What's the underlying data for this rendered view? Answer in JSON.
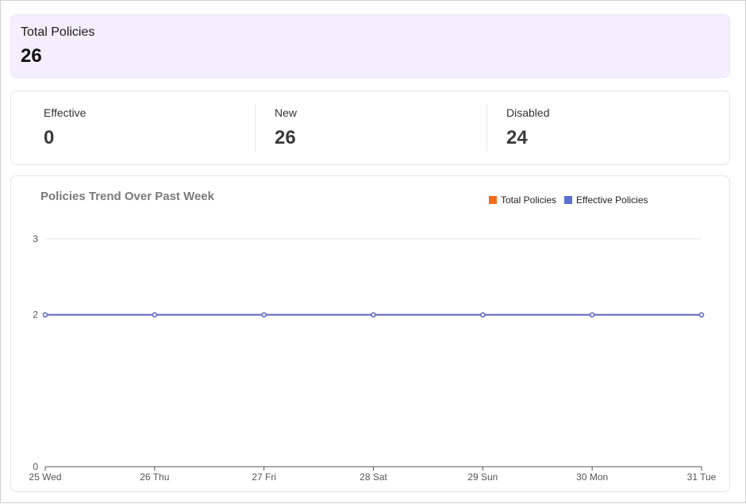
{
  "summary": {
    "total_label": "Total Policies",
    "total_value": "26"
  },
  "stats": [
    {
      "label": "Effective",
      "value": "0"
    },
    {
      "label": "New",
      "value": "26"
    },
    {
      "label": "Disabled",
      "value": "24"
    }
  ],
  "colors": {
    "total_policies": "#f26a1b",
    "effective_policies": "#5b6fd0",
    "grid": "#e6e6e6",
    "axis": "#555555"
  },
  "chart_data": {
    "type": "line",
    "title": "Policies Trend Over Past Week",
    "xlabel": "",
    "ylabel": "",
    "x": [
      "25 Wed",
      "26 Thu",
      "27 Fri",
      "28 Sat",
      "29 Sun",
      "30 Mon",
      "31 Tue"
    ],
    "ylim": [
      0,
      3
    ],
    "yticks": [
      0,
      2,
      3
    ],
    "grid": true,
    "legend_position": "top-right",
    "series": [
      {
        "name": "Total Policies",
        "values": [
          2,
          2,
          2,
          2,
          2,
          2,
          2
        ]
      },
      {
        "name": "Effective Policies",
        "values": [
          2,
          2,
          2,
          2,
          2,
          2,
          2
        ]
      }
    ]
  }
}
